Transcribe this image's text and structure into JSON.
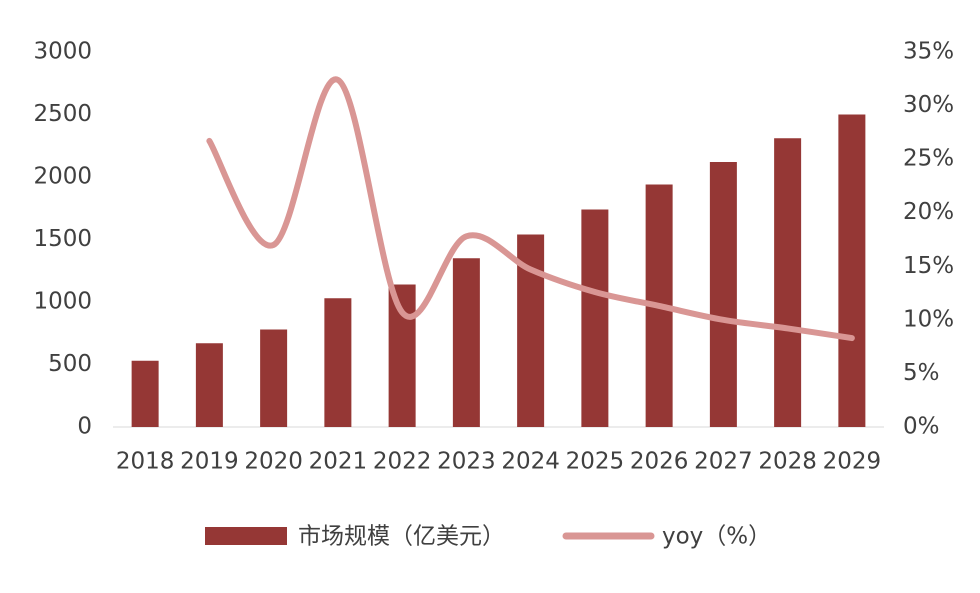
{
  "chart_data": {
    "type": "bar-line",
    "categories": [
      "2018",
      "2019",
      "2020",
      "2021",
      "2022",
      "2023",
      "2024",
      "2025",
      "2026",
      "2027",
      "2028",
      "2029"
    ],
    "series": [
      {
        "name": "市场规模（亿美元）",
        "color": "#953735",
        "type": "bar",
        "values": [
          530,
          670,
          780,
          1030,
          1140,
          1350,
          1540,
          1740,
          1940,
          2120,
          2310,
          2500
        ]
      },
      {
        "name": "yoy（%）",
        "color": "#d99694",
        "type": "line",
        "axis": "y2",
        "smooth": true,
        "values": [
          null,
          26.7,
          17.0,
          32.4,
          10.7,
          17.8,
          14.7,
          12.6,
          11.3,
          10.0,
          9.2,
          8.3
        ]
      }
    ],
    "ylim": [
      0,
      3000
    ],
    "yticks": [
      0,
      500,
      1000,
      1500,
      2000,
      2500,
      3000
    ],
    "y2lim": [
      0,
      35
    ],
    "y2ticks": [
      {
        "value": 0,
        "label": "0%"
      },
      {
        "value": 5,
        "label": "5%"
      },
      {
        "value": 10,
        "label": "10%"
      },
      {
        "value": 15,
        "label": "15%"
      },
      {
        "value": 20,
        "label": "20%"
      },
      {
        "value": 25,
        "label": "25%"
      },
      {
        "value": 30,
        "label": "30%"
      },
      {
        "value": 35,
        "label": "35%"
      }
    ],
    "legend": "bottom"
  }
}
